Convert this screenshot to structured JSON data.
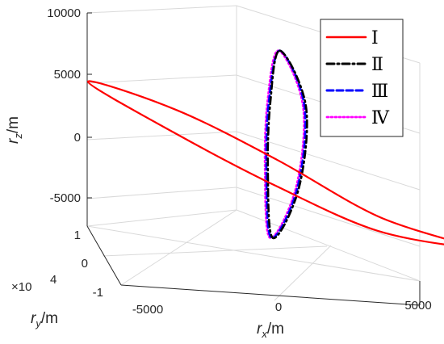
{
  "chart_data": {
    "type": "line",
    "projection": "3d",
    "grid": true,
    "legend_position": "top-right",
    "axes": {
      "x": {
        "label_base": "r",
        "label_sub": "x",
        "label_unit": "/m",
        "ticks": [
          "-5000",
          "0",
          "5000"
        ],
        "range": [
          -5000,
          5000
        ]
      },
      "y": {
        "label_base": "r",
        "label_sub": "y",
        "label_unit": "/m",
        "ticks": [
          "-1",
          "0",
          "1"
        ],
        "range": [
          -1,
          1
        ],
        "multiplier_base": "×10",
        "multiplier_exp": "4"
      },
      "z": {
        "label_base": "r",
        "label_sub": "z",
        "label_unit": "/m",
        "ticks": [
          "-5000",
          "0",
          "5000",
          "10000"
        ],
        "range": [
          -7000,
          10000
        ]
      }
    },
    "series": [
      {
        "name": "Ⅰ",
        "color": "#ff0000",
        "style": "solid",
        "x": [
          -5000,
          -2500,
          0,
          2500,
          5000,
          2500,
          0,
          -2500,
          -5000
        ],
        "y": [
          0.95,
          0.62,
          0.0,
          -0.62,
          -0.95,
          -0.62,
          0.0,
          0.62,
          0.95
        ],
        "z": [
          2000,
          900,
          -1200,
          -3800,
          -5000,
          -4900,
          -3200,
          -900,
          2000
        ]
      },
      {
        "name": "Ⅱ",
        "color": "#000000",
        "style": "dashdot",
        "x": [
          100,
          900,
          600,
          -200,
          -300,
          -150,
          100
        ],
        "y": [
          0,
          -0.05,
          -0.1,
          -0.05,
          0,
          0.05,
          0
        ],
        "z": [
          7000,
          3000,
          -3000,
          -7000,
          -2000,
          3000,
          7000
        ]
      },
      {
        "name": "Ⅲ",
        "color": "#0000ff",
        "style": "dashed",
        "x": [
          100,
          850,
          550,
          -250,
          -350,
          -200,
          100
        ],
        "y": [
          0,
          -0.05,
          -0.1,
          -0.05,
          0,
          0.05,
          0
        ],
        "z": [
          7000,
          3000,
          -3000,
          -7000,
          -2000,
          3000,
          7000
        ]
      },
      {
        "name": "Ⅳ",
        "color": "#ff00ff",
        "style": "dotted",
        "x": [
          50,
          800,
          500,
          -300,
          -400,
          -250,
          50
        ],
        "y": [
          0,
          -0.05,
          -0.1,
          -0.05,
          0,
          0.05,
          0
        ],
        "z": [
          7000,
          3000,
          -3000,
          -7000,
          -2000,
          3000,
          7000
        ]
      }
    ]
  }
}
